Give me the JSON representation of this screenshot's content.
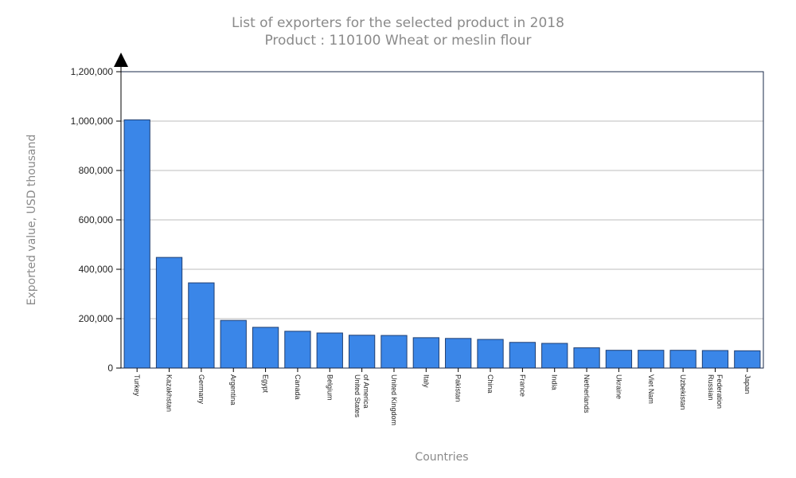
{
  "chart_data": {
    "type": "bar",
    "title": "List of exporters for the selected product in 2018",
    "subtitle": "Product : 110100 Wheat or meslin flour",
    "xlabel": "Countries",
    "ylabel": "Exported value, USD thousand",
    "ylim": [
      0,
      1200000
    ],
    "yticks": [
      0,
      200000,
      400000,
      600000,
      800000,
      1000000,
      1200000
    ],
    "ytick_labels": [
      "0",
      "200,000",
      "400,000",
      "600,000",
      "800,000",
      "1,000,000",
      "1,200,000"
    ],
    "grid": true,
    "bar_color": "#3a86e8",
    "categories": [
      [
        "Turkey"
      ],
      [
        "Kazakhstan"
      ],
      [
        "Germany"
      ],
      [
        "Argentina"
      ],
      [
        "Egypt"
      ],
      [
        "Canada"
      ],
      [
        "Belgium"
      ],
      [
        "United States",
        "of America"
      ],
      [
        "United Kingdom"
      ],
      [
        "Italy"
      ],
      [
        "Pakistan"
      ],
      [
        "China"
      ],
      [
        "France"
      ],
      [
        "India"
      ],
      [
        "Netherlands"
      ],
      [
        "Ukraine"
      ],
      [
        "Viet Nam"
      ],
      [
        "Uzbekistan"
      ],
      [
        "Russian",
        "Federation"
      ],
      [
        "Japan"
      ]
    ],
    "values": [
      1005000,
      448000,
      345000,
      193000,
      165000,
      149000,
      142000,
      133000,
      132000,
      123000,
      120000,
      116000,
      104000,
      100000,
      82000,
      72000,
      72000,
      72000,
      71000,
      70000
    ]
  }
}
